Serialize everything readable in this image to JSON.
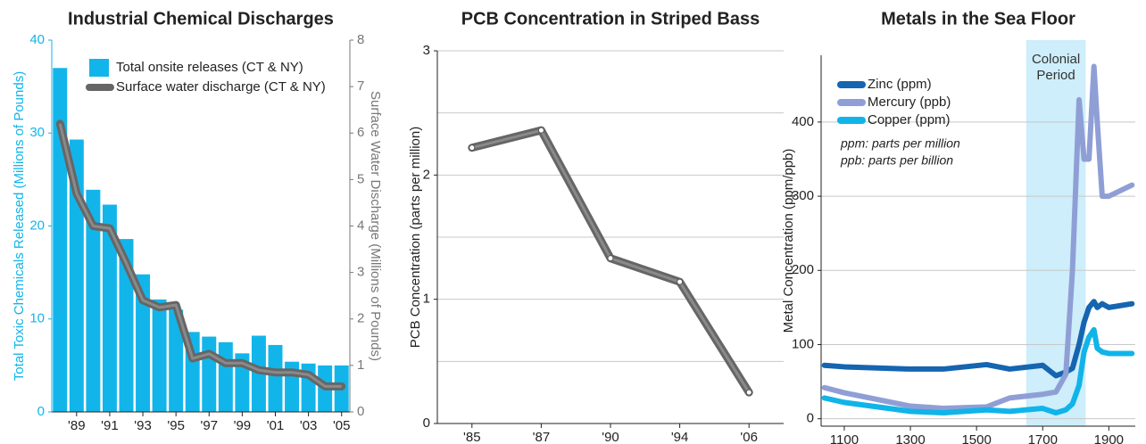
{
  "chart_data": [
    {
      "type": "bar",
      "title": "Industrial Chemical Discharges",
      "categories": [
        null,
        "'89",
        null,
        "'91",
        null,
        "'93",
        null,
        "'95",
        null,
        "'97",
        null,
        "'99",
        null,
        "'01",
        null,
        "'03",
        null,
        "'05"
      ],
      "series": [
        {
          "name": "Total onsite releases (CT & NY)",
          "color": "#12b5ea",
          "type": "bar",
          "values": [
            37,
            29.3,
            23.9,
            22.3,
            18.6,
            14.8,
            12.1,
            11,
            8.6,
            8.1,
            7.5,
            6.3,
            8.2,
            7.2,
            5.4,
            5.2,
            5,
            5
          ]
        },
        {
          "name": "Surface water discharge  (CT & NY)",
          "color": "#666666",
          "type": "line",
          "axis": "y2",
          "values": [
            6.2,
            4.7,
            4,
            3.95,
            3.2,
            2.4,
            2.25,
            2.3,
            1.15,
            1.25,
            1.05,
            1.05,
            0.9,
            0.85,
            0.85,
            0.8,
            0.55,
            0.55
          ]
        }
      ],
      "ylabel": "Total Toxic Chemicals Released (Millions of Pounds)",
      "y2label": "Surface Water Discharge (Millions of Pounds)",
      "ylim": [
        0,
        40
      ],
      "yticks": [
        0,
        10,
        20,
        30,
        40
      ],
      "y2lim": [
        0,
        8
      ],
      "y2ticks": [
        0,
        1,
        2,
        3,
        4,
        5,
        6,
        7,
        8
      ],
      "legend": "upper right",
      "grid": false
    },
    {
      "type": "line",
      "title": "PCB Concentration in Striped Bass",
      "categories": [
        "'85",
        "'87",
        "'90",
        "'94",
        "'06"
      ],
      "series": [
        {
          "name": "PCB",
          "color": "#666666",
          "values": [
            2.22,
            2.36,
            1.33,
            1.14,
            0.25
          ]
        }
      ],
      "ylabel": "PCB Concentration (parts per million)",
      "ylim": [
        0,
        3
      ],
      "yticks": [
        0,
        1,
        2,
        3
      ],
      "yminorticks": [
        0.5,
        1.5,
        2.5
      ],
      "grid": true
    },
    {
      "type": "line",
      "title": "Metals in the Sea Floor",
      "x": [
        1040,
        1100,
        1300,
        1400,
        1530,
        1600,
        1700,
        1740,
        1770,
        1790,
        1810,
        1825,
        1840,
        1855,
        1865,
        1880,
        1900,
        1970
      ],
      "series": [
        {
          "name": "Zinc (ppm)",
          "color": "#1565b0",
          "values": [
            72,
            70,
            67,
            67,
            73,
            67,
            72,
            58,
            63,
            68,
            100,
            130,
            150,
            158,
            150,
            155,
            150,
            155
          ]
        },
        {
          "name": "Mercury (ppb)",
          "color": "#8f9fd6",
          "values": [
            42,
            35,
            17,
            14,
            16,
            28,
            33,
            36,
            60,
            200,
            430,
            350,
            350,
            475,
            400,
            300,
            300,
            315
          ]
        },
        {
          "name": "Copper (ppm)",
          "color": "#10b4e8",
          "values": [
            28,
            22,
            10,
            8,
            12,
            10,
            14,
            8,
            12,
            20,
            45,
            90,
            110,
            120,
            95,
            90,
            88,
            88
          ]
        }
      ],
      "notes": [
        "ppm: parts per million",
        "ppb: parts per billion"
      ],
      "band": {
        "xrange": [
          1650,
          1830
        ],
        "label": "Colonial Period",
        "color": "#cdeefa"
      },
      "ylabel": "Metal Concentration (ppm/ppb)",
      "xlim": [
        1030,
        1980
      ],
      "xticks": [
        1100,
        1300,
        1500,
        1700,
        1900
      ],
      "ylim": [
        -10,
        490
      ],
      "yticks": [
        0,
        100,
        200,
        300,
        400
      ],
      "legend": "upper left",
      "grid": true
    }
  ]
}
